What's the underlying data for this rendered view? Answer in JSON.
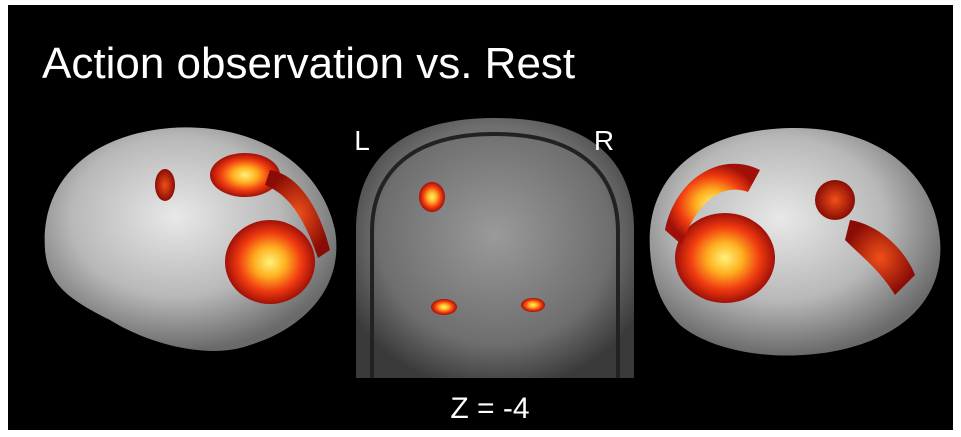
{
  "title": "Action observation vs. Rest",
  "slice": {
    "left_label": "L",
    "right_label": "R",
    "caption": "Z = -4"
  }
}
